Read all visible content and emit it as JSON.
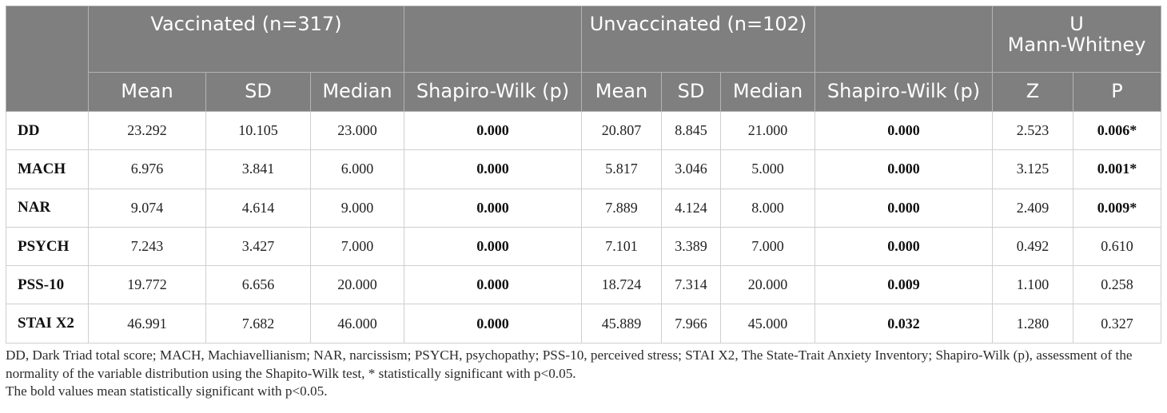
{
  "table": {
    "group_headers": {
      "vaccinated": "Vaccinated (n=317)",
      "unvaccinated": "Unvaccinated (n=102)",
      "mann_whitney": "U Mann-Whitney"
    },
    "columns": [
      "Mean",
      "SD",
      "Median",
      "Shapiro-Wilk (p)",
      "Mean",
      "SD",
      "Median",
      "Shapiro-Wilk (p)",
      "Z",
      "P"
    ],
    "rows": [
      {
        "label": "DD",
        "vax_mean": "23.292",
        "vax_sd": "10.105",
        "vax_median": "23.000",
        "vax_sw": "0.000",
        "unvax_mean": "20.807",
        "unvax_sd": "8.845",
        "unvax_median": "21.000",
        "unvax_sw": "0.000",
        "z": "2.523",
        "p": "0.006*"
      },
      {
        "label": "MACH",
        "vax_mean": "6.976",
        "vax_sd": "3.841",
        "vax_median": "6.000",
        "vax_sw": "0.000",
        "unvax_mean": "5.817",
        "unvax_sd": "3.046",
        "unvax_median": "5.000",
        "unvax_sw": "0.000",
        "z": "3.125",
        "p": "0.001*"
      },
      {
        "label": "NAR",
        "vax_mean": "9.074",
        "vax_sd": "4.614",
        "vax_median": "9.000",
        "vax_sw": "0.000",
        "unvax_mean": "7.889",
        "unvax_sd": "4.124",
        "unvax_median": "8.000",
        "unvax_sw": "0.000",
        "z": "2.409",
        "p": "0.009*"
      },
      {
        "label": "PSYCH",
        "vax_mean": "7.243",
        "vax_sd": "3.427",
        "vax_median": "7.000",
        "vax_sw": "0.000",
        "unvax_mean": "7.101",
        "unvax_sd": "3.389",
        "unvax_median": "7.000",
        "unvax_sw": "0.000",
        "z": "0.492",
        "p": "0.610"
      },
      {
        "label": "PSS-10",
        "vax_mean": "19.772",
        "vax_sd": "6.656",
        "vax_median": "20.000",
        "vax_sw": "0.000",
        "unvax_mean": "18.724",
        "unvax_sd": "7.314",
        "unvax_median": "20.000",
        "unvax_sw": "0.009",
        "z": "1.100",
        "p": "0.258"
      },
      {
        "label": "STAI X2",
        "vax_mean": "46.991",
        "vax_sd": "7.682",
        "vax_median": "46.000",
        "vax_sw": "0.000",
        "unvax_mean": "45.889",
        "unvax_sd": "7.966",
        "unvax_median": "45.000",
        "unvax_sw": "0.032",
        "z": "1.280",
        "p": "0.327"
      }
    ]
  },
  "notes": {
    "abbreviations": "DD, Dark Triad total score; MACH, Machiavellianism; NAR, narcissism; PSYCH, psychopathy; PSS-10, perceived stress; STAI X2, The State-Trait Anxiety Inventory; Shapiro-Wilk (p), assessment of the normality of the variable distribution using the Shapito-Wilk test, * statistically significant with p<0.05.",
    "bold_note": "The bold values mean statistically significant with p<0.05."
  },
  "colors": {
    "header_bg": "#7f7f7f",
    "header_text": "#ffffff",
    "border": "#cfcfcf"
  }
}
